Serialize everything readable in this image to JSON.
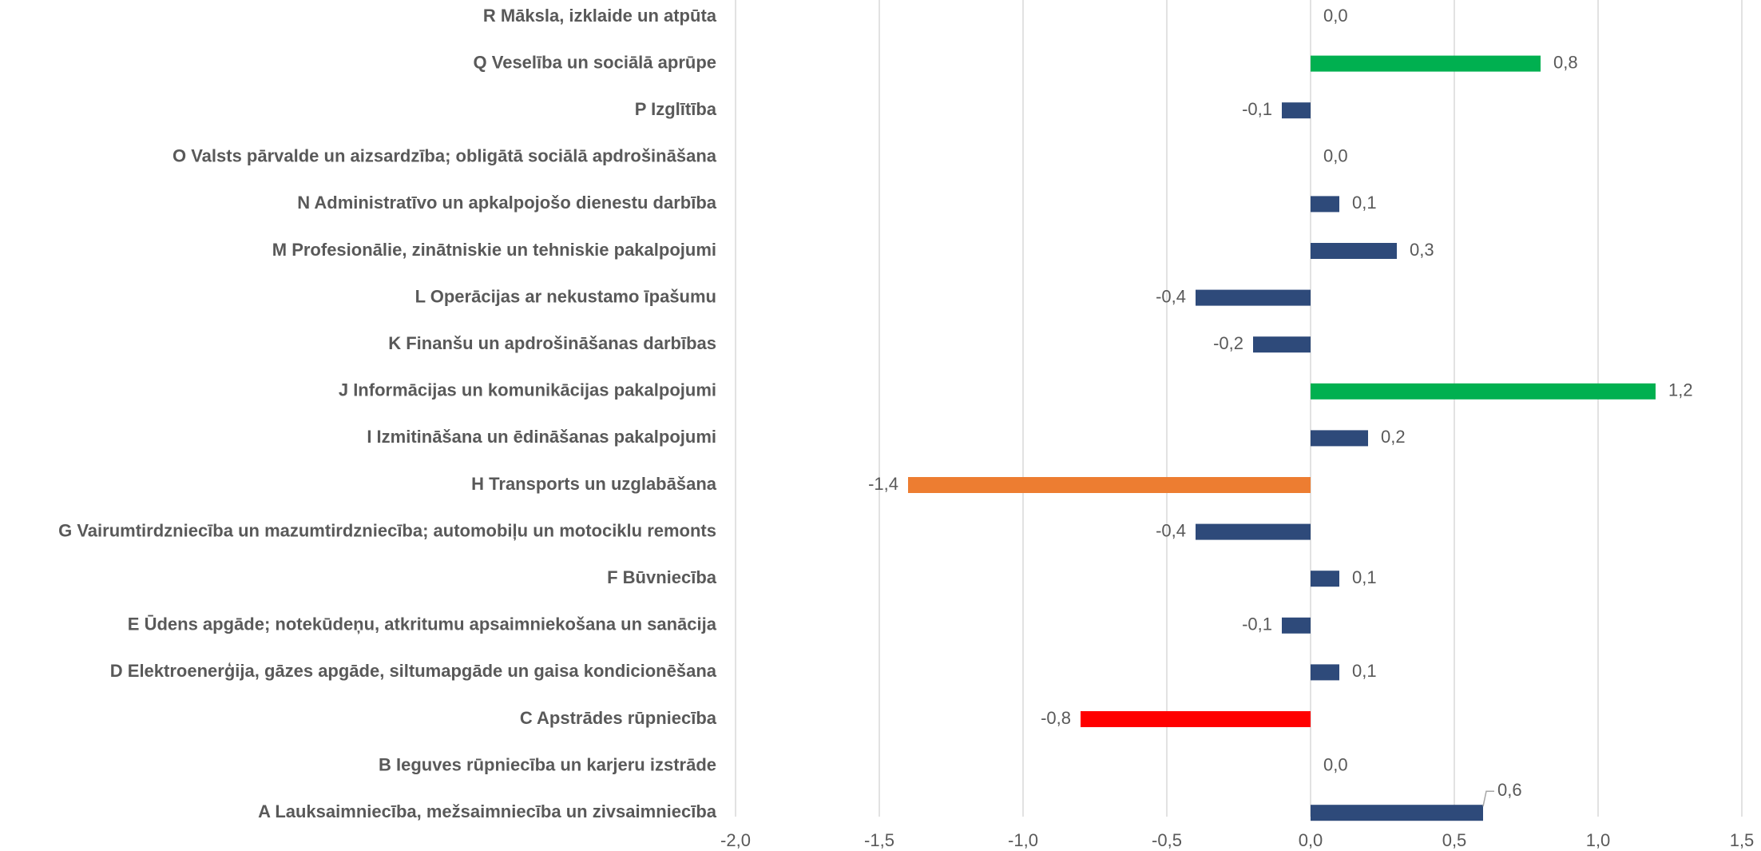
{
  "chart_data": {
    "type": "hbar",
    "categories": [
      "R Māksla, izklaide un atpūta",
      "Q Veselība un sociālā aprūpe",
      "P Izglītība",
      "O Valsts pārvalde un aizsardzība; obligātā sociālā apdrošināšana",
      "N Administratīvo un apkalpojošo dienestu darbība",
      "M Profesionālie, zinātniskie un tehniskie pakalpojumi",
      "L Operācijas ar nekustamo īpašumu",
      "K Finanšu un apdrošināšanas darbības",
      "J Informācijas un komunikācijas pakalpojumi",
      "I Izmitināšana un ēdināšanas pakalpojumi",
      "H Transports un uzglabāšana",
      "G Vairumtirdzniecība un mazumtirdzniecība; automobiļu un motociklu remonts",
      "F Būvniecība",
      "E Ūdens apgāde; notekūdeņu, atkritumu apsaimniekošana un sanācija",
      "D Elektroenerģija, gāzes apgāde, siltumapgāde un gaisa kondicionēšana",
      "C Apstrādes rūpniecība",
      "B Ieguves rūpniecība un karjeru izstrāde",
      "A Lauksaimniecība, mežsaimniecība un zivsaimniecība"
    ],
    "values": [
      0.0,
      0.8,
      -0.1,
      0.0,
      0.1,
      0.3,
      -0.4,
      -0.2,
      1.2,
      0.2,
      -1.4,
      -0.4,
      0.1,
      -0.1,
      0.1,
      -0.8,
      0.0,
      0.6
    ],
    "value_labels": [
      "0,0",
      "0,8",
      "-0,1",
      "0,0",
      "0,1",
      "0,3",
      "-0,4",
      "-0,2",
      "1,2",
      "0,2",
      "-1,4",
      "-0,4",
      "0,1",
      "-0,1",
      "0,1",
      "-0,8",
      "0,0",
      "0,6"
    ],
    "colors": [
      "#2e4a7a",
      "#00b050",
      "#2e4a7a",
      "#2e4a7a",
      "#2e4a7a",
      "#2e4a7a",
      "#2e4a7a",
      "#2e4a7a",
      "#00b050",
      "#2e4a7a",
      "#ed7d31",
      "#2e4a7a",
      "#2e4a7a",
      "#2e4a7a",
      "#2e4a7a",
      "#ff0000",
      "#2e4a7a",
      "#2e4a7a"
    ],
    "xlim": [
      -2.0,
      1.5
    ],
    "xticks": [
      {
        "value": -2.0,
        "label": "-2,0"
      },
      {
        "value": -1.5,
        "label": "-1,5"
      },
      {
        "value": -1.0,
        "label": "-1,0"
      },
      {
        "value": -0.5,
        "label": "-0,5"
      },
      {
        "value": 0.0,
        "label": "0,0"
      },
      {
        "value": 0.5,
        "label": "0,5"
      },
      {
        "value": 1.0,
        "label": "1,0"
      },
      {
        "value": 1.5,
        "label": "1,5"
      }
    ],
    "grid": true
  }
}
